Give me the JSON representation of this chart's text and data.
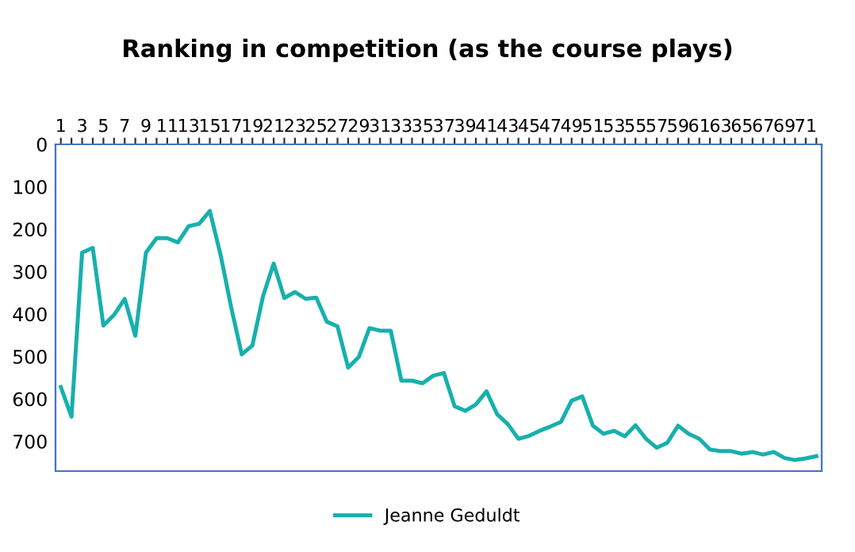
{
  "chart_data": {
    "type": "line",
    "title": "Ranking in competition (as the course plays)",
    "categories": [
      "1",
      null,
      "3",
      null,
      "5",
      null,
      "7",
      null,
      "9",
      null,
      "11",
      null,
      "13",
      null,
      "15",
      null,
      "17",
      null,
      "19",
      null,
      "21",
      null,
      "23",
      null,
      "25",
      null,
      "27",
      null,
      "29",
      null,
      "31",
      null,
      "33",
      null,
      "35",
      null,
      "37",
      null,
      "39",
      null,
      "41",
      null,
      "43",
      null,
      "45",
      null,
      "47",
      null,
      "49",
      null,
      "51",
      null,
      "53",
      null,
      "55",
      null,
      "57",
      null,
      "59",
      null,
      "61",
      null,
      "63",
      null,
      "65",
      null,
      "67",
      null,
      "69",
      null,
      "71",
      null
    ],
    "series": [
      {
        "name": "Jeanne Geduldt",
        "color": "#17b0ad",
        "values": [
          572,
          642,
          255,
          244,
          427,
          402,
          364,
          451,
          255,
          221,
          221,
          231,
          193,
          187,
          157,
          259,
          383,
          495,
          474,
          358,
          281,
          362,
          348,
          364,
          361,
          418,
          429,
          526,
          501,
          433,
          439,
          439,
          557,
          557,
          563,
          545,
          539,
          617,
          628,
          613,
          582,
          636,
          659,
          694,
          687,
          675,
          665,
          654,
          604,
          594,
          663,
          682,
          675,
          688,
          662,
          694,
          715,
          703,
          663,
          682,
          694,
          719,
          723,
          723,
          729,
          725,
          731,
          725,
          739,
          744,
          740,
          735
        ]
      }
    ],
    "ylim": [
      770,
      0
    ],
    "yticks": [
      0,
      100,
      200,
      300,
      400,
      500,
      600,
      700
    ],
    "grid": false,
    "legend": "bottom",
    "marker": "none",
    "line_style": "solid"
  }
}
